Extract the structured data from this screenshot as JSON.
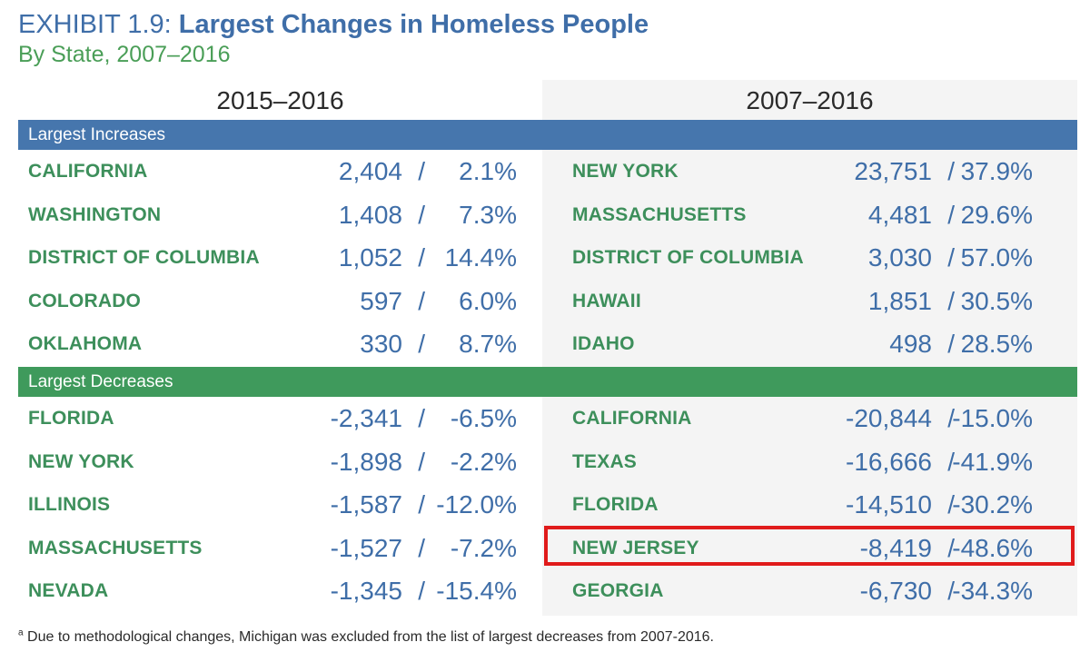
{
  "header": {
    "exhibit_label": "EXHIBIT 1.9:",
    "title": "Largest Changes in Homeless People",
    "subtitle": "By State, 2007–2016"
  },
  "periods": {
    "left": "2015–2016",
    "right": "2007–2016"
  },
  "sections": [
    {
      "label": "Largest Increases",
      "left": [
        {
          "state": "CALIFORNIA",
          "change": "2,404",
          "percent": "2.1%"
        },
        {
          "state": "WASHINGTON",
          "change": "1,408",
          "percent": "7.3%"
        },
        {
          "state": "DISTRICT OF COLUMBIA",
          "change": "1,052",
          "percent": "14.4%"
        },
        {
          "state": "COLORADO",
          "change": "597",
          "percent": "6.0%"
        },
        {
          "state": "OKLAHOMA",
          "change": "330",
          "percent": "8.7%"
        }
      ],
      "right": [
        {
          "state": "NEW YORK",
          "change": "23,751",
          "percent": "37.9%"
        },
        {
          "state": "MASSACHUSETTS",
          "change": "4,481",
          "percent": "29.6%"
        },
        {
          "state": "DISTRICT OF COLUMBIA",
          "change": "3,030",
          "percent": "57.0%"
        },
        {
          "state": "HAWAII",
          "change": "1,851",
          "percent": "30.5%"
        },
        {
          "state": "IDAHO",
          "change": "498",
          "percent": "28.5%"
        }
      ]
    },
    {
      "label": "Largest Decreases",
      "left": [
        {
          "state": "FLORIDA",
          "change": "-2,341",
          "percent": "-6.5%"
        },
        {
          "state": "NEW YORK",
          "change": "-1,898",
          "percent": "-2.2%"
        },
        {
          "state": "ILLINOIS",
          "change": "-1,587",
          "percent": "-12.0%"
        },
        {
          "state": "MASSACHUSETTS",
          "change": "-1,527",
          "percent": "-7.2%"
        },
        {
          "state": "NEVADA",
          "change": "-1,345",
          "percent": "-15.4%"
        }
      ],
      "right": [
        {
          "state": "CALIFORNIA",
          "change": "-20,844",
          "percent": "-15.0%"
        },
        {
          "state": "TEXAS",
          "change": "-16,666",
          "percent": "-41.9%"
        },
        {
          "state": "FLORIDA",
          "change": "-14,510",
          "percent": "-30.2%"
        },
        {
          "state": "NEW JERSEY",
          "change": "-8,419",
          "percent": "-48.6%"
        },
        {
          "state": "GEORGIA",
          "change": "-6,730",
          "percent": "-34.3%"
        }
      ]
    }
  ],
  "separator": "/",
  "footnote": {
    "marker": "a",
    "text": "Due to methodological changes, Michigan was excluded from the list of largest decreases from 2007-2016."
  },
  "colors": {
    "title_blue": "#3f6ea8",
    "subtitle_green": "#4a9e57",
    "increase_band": "#4676ad",
    "decrease_band": "#3f9a5c",
    "highlight_red": "#e01b1b"
  }
}
